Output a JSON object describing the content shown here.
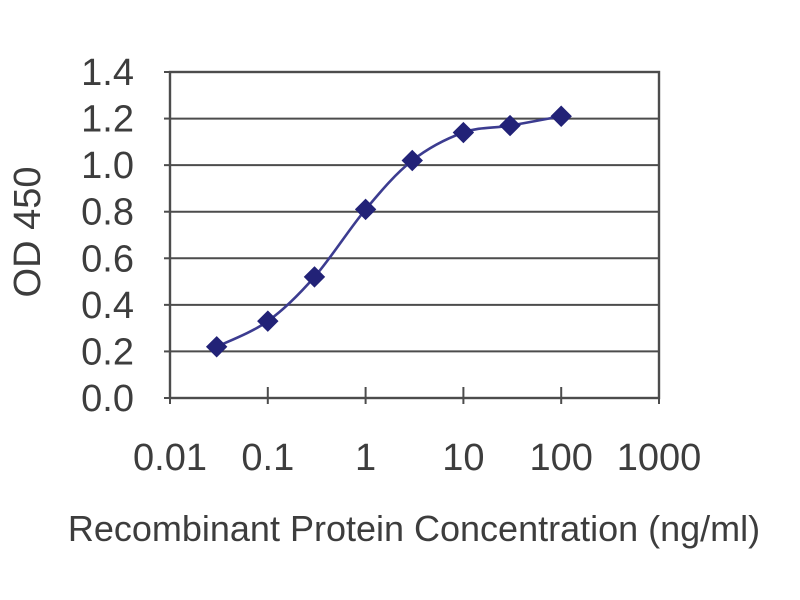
{
  "chart_data": {
    "type": "line",
    "subtype": "scatter-smooth-log-x",
    "title": "",
    "xlabel": "Recombinant Protein Concentration (ng/ml)",
    "ylabel": "OD 450",
    "xscale": "log",
    "xlim": [
      0.01,
      1000
    ],
    "ylim": [
      0,
      1.4
    ],
    "x": [
      0.03,
      0.1,
      0.3,
      1,
      3,
      10,
      30,
      100
    ],
    "y": [
      0.22,
      0.33,
      0.52,
      0.81,
      1.02,
      1.14,
      1.17,
      1.21
    ],
    "x_ticks": [
      0.01,
      0.1,
      1,
      10,
      100,
      1000
    ],
    "x_tick_labels": [
      "0.01",
      "0.1",
      "1",
      "10",
      "100",
      "1000"
    ],
    "y_ticks": [
      0,
      0.2,
      0.4,
      0.6,
      0.8,
      1.0,
      1.2,
      1.4
    ],
    "y_tick_labels": [
      "0.0",
      "0.2",
      "0.4",
      "0.6",
      "0.8",
      "1.0",
      "1.2",
      "1.4"
    ],
    "grid": "horizontal-only",
    "legend": null,
    "marker": "diamond",
    "colors": {
      "marker": "#222277",
      "line": "#3c3c90",
      "grid": "#4c4c4c",
      "frame": "#4c4c4c",
      "text": "#3d3d3d",
      "background": "#ffffff"
    }
  }
}
